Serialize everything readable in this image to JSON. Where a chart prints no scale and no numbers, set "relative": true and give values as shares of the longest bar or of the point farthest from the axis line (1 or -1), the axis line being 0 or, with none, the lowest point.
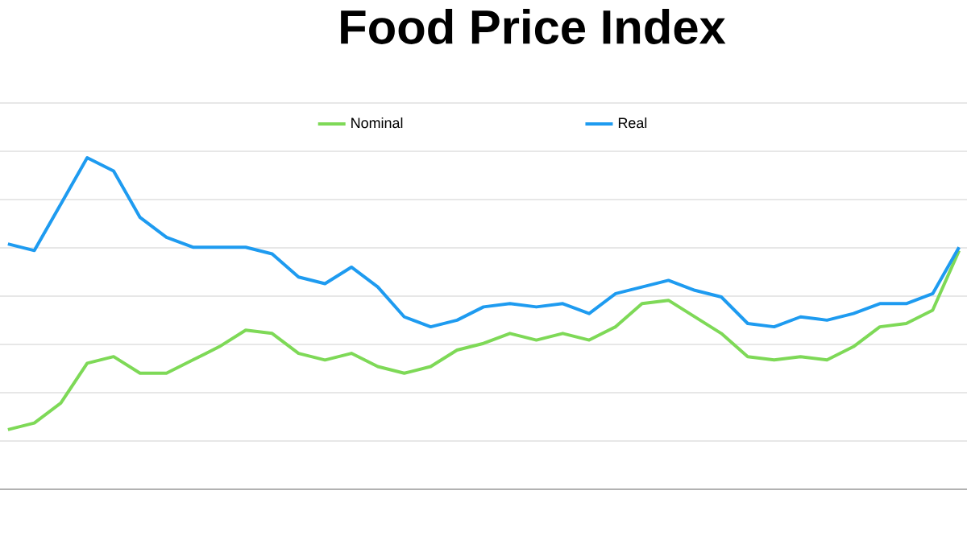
{
  "chart_data": {
    "type": "line",
    "title": "Food Price Index",
    "relative": true,
    "grid": "y",
    "legend": "top",
    "marker": "none",
    "line_style": "solid",
    "categories": [
      null,
      null,
      null,
      null,
      null,
      null,
      null,
      null,
      null,
      null,
      null,
      null,
      null,
      null,
      null,
      null,
      null,
      null,
      null,
      null,
      null,
      null,
      null,
      null,
      null,
      null,
      null,
      null,
      null,
      null,
      null,
      null,
      null,
      null,
      null,
      null,
      null
    ],
    "series": [
      {
        "name": "Nominal",
        "color": "#7ed957",
        "values": [
          0.18,
          0.2,
          0.26,
          0.38,
          0.4,
          0.35,
          0.35,
          0.39,
          0.43,
          0.48,
          0.47,
          0.41,
          0.39,
          0.41,
          0.37,
          0.35,
          0.37,
          0.42,
          0.44,
          0.47,
          0.45,
          0.47,
          0.45,
          0.49,
          0.56,
          0.57,
          0.52,
          0.47,
          0.4,
          0.39,
          0.4,
          0.39,
          0.43,
          0.49,
          0.5,
          0.54,
          0.72
        ]
      },
      {
        "name": "Real",
        "color": "#1e9bf0",
        "values": [
          0.74,
          0.72,
          0.86,
          1,
          0.96,
          0.82,
          0.76,
          0.73,
          0.73,
          0.73,
          0.71,
          0.64,
          0.62,
          0.67,
          0.61,
          0.52,
          0.49,
          0.51,
          0.55,
          0.56,
          0.55,
          0.56,
          0.53,
          0.59,
          0.61,
          0.63,
          0.6,
          0.58,
          0.5,
          0.49,
          0.52,
          0.51,
          0.53,
          0.56,
          0.56,
          0.59,
          0.73
        ]
      }
    ]
  }
}
